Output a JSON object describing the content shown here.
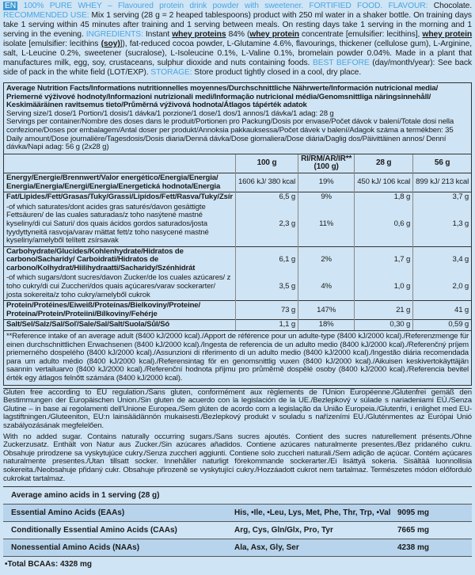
{
  "intro": {
    "badge": "EN",
    "segments": [
      "100% PURE WHEY – Flavoured protein drink powder with sweetener. FORTIFIED FOOD. FLAVOUR:",
      "Chocolate.",
      "RECOMMENDED USE:",
      "Mix 1 serving (28 g = 2 heaped tablespoons) product with 250 ml water in a shaker bottle. On training days take 1 serving within 45 minutes after training and 1 serving between meals. On resting days take 1 serving in the morning and 1 serving in the evening.",
      "INGREDIENTS:",
      "Instant",
      "whey proteins",
      "84% (",
      "whey protein",
      "concentrate [emulsifier: lecithins],",
      "whey protein",
      "isolate [emulsifier: lecithins",
      "(soy)",
      "]), fat-reduced cocoa powder, L-Glutamine 4.6%, flavourings, thickener (cellulose gum), L-Arginine, salt, L-Leucine 0.2%, sweetener (sucralose), L-Isoleucine 0.1%, L-Valine 0.1%, bromelain powder 0.04%. Made in a plant that manufactures milk, egg, soy, crustaceans, sulphur dioxide and nuts containing foods.",
      "BEST BEFORE",
      "(day/month/year): See back side of pack in the white field (LOT/EXP).",
      "STORAGE:",
      "Store product tightly closed in a cool, dry place."
    ]
  },
  "nutrition": {
    "title": "Average Nutrition Facts/Informations nutritionnelles moyennes/Durchschnittliche Nährwerte/Información nutricional media/ Priemerné výživové hodnoty/Informazioni nutrizionali medi/Informação nutricional média/Genomsnittliga näringsinnehåll/ Keskimääräinen ravitsemus tieto/Průměrná výživová hodnota/Átlagos tápérték adatok",
    "serving_size": "Serving size/1 dose/1 Portion/1 dosis/1 dávka/1 porzione/1 dose/1 dos/1 annos/1 dávka/1 adag: 28 g",
    "servings": "Servings per container/Nombre des doses dans le produit/Portionen pro Packung/Dosis por envase/Počet dávok v balení/Totale dosi nella confezione/Doses por embalagem/Antal doser per produkt/Annoksia pakkauksessa/Počet dávek v balení/Adagok száma a termékben: 35",
    "daily": "Daily amount/Dose journalière/Tagesdosis/Dosis diaria/Denná dávka/Dose giornaliera/Dose diária/Daglig dos/Päivittäinen annos/ Denní dávka/Napi adag: 56 g (2x28 g)",
    "columns": [
      "100 g",
      "RI/RM/AR/IR** (100 g)",
      "28 g",
      "56 g"
    ],
    "groups": [
      {
        "rows": [
          {
            "label": "Energy/Energie/Brennwert/Valor energético/Energia/Energia/ Energia/Energia/Energi/Energia/Energetická hodnota/Energia",
            "cells": [
              "1606 kJ/ 380 kcal",
              "19%",
              "450 kJ/ 106 kcal",
              "899 kJ/ 213 kcal"
            ]
          }
        ]
      },
      {
        "rows": [
          {
            "label": "Fat/Lipides/Fett/Grasas/Tuky/Grassi/Lipídos/Fett/Rasva/Tuky/Zsír",
            "cells": [
              "6,5 g",
              "9%",
              "1,8 g",
              "3,7 g"
            ]
          },
          {
            "label": "-of which saturates/dont acides gras saturés/davon gesättigte Fettsäuren/ de las cuales saturadas/z toho nasýtené mastné kyseliny/di cui Saturi/ dos quais ácidos gordos saturados/josta tyydyttyneitä rasvoja/varav mättat fett/z toho nasycené mastné kyseliny/amelyből telített zsírsavak",
            "cells": [
              "2,3 g",
              "11%",
              "0,6 g",
              "1,3 g"
            ]
          }
        ]
      },
      {
        "rows": [
          {
            "label": "Carbohydrate/Glucides/Kohlenhydrate/Hidratos de carbono/Sacharidy/ Carboidrati/Hidratos de carbono/Kolhydrat/Hiilihydraatti/Sacharidy/Szénhidrát",
            "cells": [
              "6,1 g",
              "2%",
              "1,7 g",
              "3,4 g"
            ]
          },
          {
            "label": "-of which sugars/dont sucres/davon Zucker/de los cuales azúcares/ z toho cukry/di cui Zuccheri/dos quais açúcares/varav sockerarter/ josta sokereita/z toho cukry/amelyből cukrok",
            "cells": [
              "3,5 g",
              "4%",
              "1,0 g",
              "2,0 g"
            ]
          }
        ]
      },
      {
        "rows": [
          {
            "label": "Protein/Protéines/Eiweiß/Proteínas/Bielkoviny/Proteine/ Proteína/Protein/Proteiini/Bílkoviny/Fehérje",
            "cells": [
              "73 g",
              "147%",
              "21 g",
              "41 g"
            ]
          }
        ]
      },
      {
        "rows": [
          {
            "label": "Salt/Sel/Salz/Sal/Soľ/Sale/Sal/Salt/Suola/Sůl/Só",
            "cells": [
              "1,1 g",
              "18%",
              "0,30 g",
              "0,59 g"
            ]
          }
        ]
      }
    ],
    "footnote": "**Reference intake of an average adult (8400 kJ/2000 kcal)./Apport de référence pour un adulte-type (8400 kJ/2000 kcal)./Referenzmenge für einen durchschnittlichen Erwachsenen (8400 kJ/2000 kcal)./Ingesta de referencia de un adulto medio (8400 kJ/2000 kcal)./Referenčný príjem priemerného dospelého (8400 kJ/2000 kcal)./Assunzioni di riferimento di un adulto medio (8400 kJ/2000 kcal)./Ingestão diária recomendada para um adulto médio (8400 kJ/2000 kcal)./Referensintag för en genomsnittlig vuxen (8400 kJ/2000 kcal)./Aikuisen keskivertokäyttäjän saannin vertailuarvo (8400 kJ/2000 kcal)./Referenční hodnota příjmu pro průměrně dospělé osoby (8400 kJ/2000 kcal)./Referencia bevitel érték egy átlagos felnőtt számára (8400 kJ/2000 kcal)."
  },
  "notes": {
    "gluten": "Gluten free according to EU regulation./Sans gluten, conformément aux règlements de l'Union Européenne./Glutenfrei gemäß den Bestimmungen der Europäischen Union./Sin gluten de acuerdo con la legislación de la UE./Bezlepkový v súlade s nariadeniami EÚ./Senza Glutine – in base ai regolamenti dell'Unione Europea./Sem glúten de acordo com a legislação da União Europeia./Glutenfri, i enlighet med EU-lagstiftningen./Gluteeniton, EU:n lainsäädännön mukaisesti./Bezlepkový produkt v souladu s nařízeními EU./Gluténmentes az Európai Unió szabályozásának megfelelően.",
    "sugar": "With no added sugar. Contains naturally occurring sugars./Sans sucres ajoutés. Contient des sucres naturellement présents./Ohne Zuckerzusatz. Enthält von Natur aus Zucker./Sin azúcares añadidos. Contiene azúcares naturalmente presentes./Bez pridaného cukru. Obsahuje prirodzene sa vyskytujúce cukry./Senza zuccheri aggiunti. Contiene solo zuccheri naturali./Sem adição de açúcar. Contém açúcares naturalmente presentes./Utan tillsatt socker. Innehåller naturligt förekommande sockerarter./Ei lisättyä sokeria. Sisältää luonnollisia sokereita./Neobsahuje přidaný cukr. Obsahuje přirozeně se vyskytující cukry./Hozzáadott cukrot nem tartalmaz. Természetes módon előforduló cukrokat tartalmaz."
  },
  "amino": {
    "title": "Average amino acids in 1 serving (28 g)",
    "rows": [
      {
        "name": "Essential Amino Acids (EAAs)",
        "list": "His, •Ile, •Leu, Lys, Met, Phe, Thr, Trp, •Val",
        "amount": "9095 mg"
      },
      {
        "name": "Conditionally Essential Amino Acids (CAAs)",
        "list": "Arg, Cys, Gln/Glx, Pro, Tyr",
        "amount": "7665 mg"
      },
      {
        "name": "Nonessential Amino Acids (NAAs)",
        "list": "Ala, Asx, Gly, Ser",
        "amount": "4238 mg"
      }
    ],
    "total": "•Total BCAAs: 4328 mg"
  }
}
